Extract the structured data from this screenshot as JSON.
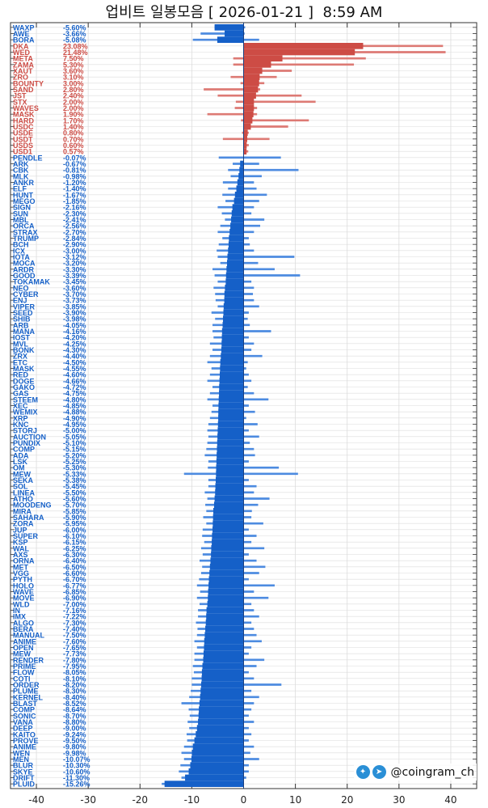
{
  "title": "업비트 일봉모음 [ 2026-01-21 ]  8:59 AM",
  "watermark": "@coingram_ch",
  "watermark_icons": [
    "twitter-icon",
    "telegram-icon"
  ],
  "colors": {
    "down": "#1560c8",
    "down_wick": "#4d8be0",
    "up": "#cd4c45",
    "up_wick": "#dd7a74",
    "grid": "#dcdcdc"
  },
  "chart_data": {
    "type": "bar",
    "orientation": "horizontal candle (change %, low, high)",
    "xlim": [
      -45,
      45
    ],
    "xticks": [
      -40,
      -30,
      -20,
      -10,
      0,
      10,
      20,
      30,
      40
    ],
    "grid": true,
    "rows": [
      [
        "WAXP",
        -5.6,
        -5.6,
        0.3
      ],
      [
        "AWE",
        -3.66,
        -8.3,
        0.2
      ],
      [
        "BORA",
        -5.08,
        -9.8,
        3.0
      ],
      [
        "DKA",
        23.08,
        0,
        38.5
      ],
      [
        "WED",
        21.48,
        0,
        39.0
      ],
      [
        "META",
        7.5,
        -2.0,
        23.6
      ],
      [
        "ZAMA",
        5.3,
        -2.0,
        21.3
      ],
      [
        "XAUT",
        3.6,
        0,
        9.3
      ],
      [
        "ZRO",
        3.1,
        -2.5,
        6.4
      ],
      [
        "BOUNTY",
        3.0,
        -0.6,
        4.0
      ],
      [
        "SAND",
        2.8,
        -7.7,
        3.2
      ],
      [
        "JST",
        2.4,
        -5.0,
        11.2
      ],
      [
        "STX",
        2.0,
        -1.5,
        13.9
      ],
      [
        "WAVES",
        2.0,
        -1.7,
        2.6
      ],
      [
        "MASK",
        1.9,
        -7.0,
        2.6
      ],
      [
        "HARD",
        1.7,
        -0.5,
        12.6
      ],
      [
        "USDC",
        1.4,
        0,
        8.6
      ],
      [
        "USDE",
        0.8,
        -0.3,
        1.0
      ],
      [
        "USDT",
        0.7,
        -4.0,
        5.0
      ],
      [
        "USDS",
        0.6,
        0,
        1.0
      ],
      [
        "USD1",
        0.57,
        0,
        0.9
      ],
      [
        "PENDLE",
        -0.07,
        -4.8,
        7.2
      ],
      [
        "ARK",
        -0.67,
        -2.1,
        3.0
      ],
      [
        "CBK",
        -0.81,
        -3.0,
        10.6
      ],
      [
        "MLK",
        -0.98,
        -2.5,
        3.5
      ],
      [
        "ANKR",
        -1.2,
        -4.0,
        2.0
      ],
      [
        "ELF",
        -1.4,
        -3.0,
        2.5
      ],
      [
        "HUNT",
        -1.67,
        -4.1,
        4.5
      ],
      [
        "MEGO",
        -1.85,
        -3.5,
        3.0
      ],
      [
        "SIGN",
        -2.16,
        -5.0,
        2.0
      ],
      [
        "SUN",
        -2.3,
        -4.2,
        1.5
      ],
      [
        "MBL",
        -2.41,
        -3.6,
        4.0
      ],
      [
        "ORCA",
        -2.56,
        -4.5,
        3.2
      ],
      [
        "STRAX",
        -2.7,
        -5.0,
        2.0
      ],
      [
        "TRUMP",
        -2.84,
        -4.1,
        1.0
      ],
      [
        "BCH",
        -2.9,
        -4.8,
        1.2
      ],
      [
        "ICX",
        -3.0,
        -5.2,
        2.0
      ],
      [
        "IOTA",
        -3.12,
        -5.0,
        9.8
      ],
      [
        "MOCA",
        -3.2,
        -4.5,
        2.8
      ],
      [
        "ARDR",
        -3.3,
        -6.0,
        6.0
      ],
      [
        "GOOD",
        -3.39,
        -5.6,
        10.9
      ],
      [
        "TOKAMAK",
        -3.45,
        -5.0,
        1.5
      ],
      [
        "NEO",
        -3.6,
        -5.8,
        2.0
      ],
      [
        "CYBER",
        -3.7,
        -5.5,
        1.8
      ],
      [
        "ENJ",
        -3.73,
        -5.4,
        2.0
      ],
      [
        "VIPER",
        -3.85,
        -5.0,
        3.0
      ],
      [
        "SEED",
        -3.9,
        -6.2,
        1.0
      ],
      [
        "SHIB",
        -3.98,
        -5.5,
        0.8
      ],
      [
        "ARB",
        -4.05,
        -6.0,
        1.2
      ],
      [
        "MANA",
        -4.16,
        -6.0,
        5.3
      ],
      [
        "IOST",
        -4.2,
        -5.8,
        1.0
      ],
      [
        "MVL",
        -4.25,
        -6.5,
        2.0
      ],
      [
        "BONK",
        -4.3,
        -6.0,
        1.5
      ],
      [
        "ZRX",
        -4.4,
        -6.5,
        3.6
      ],
      [
        "ETC",
        -4.5,
        -7.0,
        0.8
      ],
      [
        "MASK",
        -4.55,
        -6.2,
        0.5
      ],
      [
        "RED",
        -4.6,
        -6.5,
        1.0
      ],
      [
        "DOGE",
        -4.66,
        -7.0,
        1.5
      ],
      [
        "GAKO",
        -4.72,
        -6.0,
        0.8
      ],
      [
        "GAS",
        -4.75,
        -6.5,
        2.0
      ],
      [
        "STEEM",
        -4.8,
        -7.0,
        4.8
      ],
      [
        "XEC",
        -4.85,
        -6.0,
        1.0
      ],
      [
        "WEMIX",
        -4.88,
        -6.2,
        2.2
      ],
      [
        "XRP",
        -4.9,
        -6.5,
        0.5
      ],
      [
        "KNC",
        -4.95,
        -6.8,
        2.7
      ],
      [
        "STORJ",
        -5.0,
        -7.0,
        1.0
      ],
      [
        "AUCTION",
        -5.05,
        -6.8,
        3.0
      ],
      [
        "PUNDIX",
        -5.1,
        -7.0,
        1.2
      ],
      [
        "COMP",
        -5.15,
        -7.2,
        2.0
      ],
      [
        "ADA",
        -5.2,
        -7.5,
        2.2
      ],
      [
        "LSK",
        -5.25,
        -6.8,
        1.0
      ],
      [
        "OM",
        -5.3,
        -6.9,
        6.8
      ],
      [
        "MEW",
        -5.33,
        -11.5,
        10.5
      ],
      [
        "SEKA",
        -5.38,
        -6.8,
        1.0
      ],
      [
        "SOL",
        -5.45,
        -6.8,
        2.5
      ],
      [
        "LINEA",
        -5.5,
        -7.5,
        2.0
      ],
      [
        "ATHO",
        -5.6,
        -7.0,
        5.0
      ],
      [
        "MOODENG",
        -5.7,
        -7.4,
        2.8
      ],
      [
        "MIRA",
        -5.85,
        -7.2,
        1.6
      ],
      [
        "SAHARA",
        -5.9,
        -7.8,
        1.5
      ],
      [
        "ZORA",
        -5.95,
        -7.2,
        3.8
      ],
      [
        "JUP",
        -6.0,
        -7.9,
        1.0
      ],
      [
        "SUPER",
        -6.1,
        -8.0,
        2.5
      ],
      [
        "KSP",
        -6.15,
        -7.6,
        1.5
      ],
      [
        "WAL",
        -6.25,
        -8.2,
        4.0
      ],
      [
        "AXS",
        -6.3,
        -7.9,
        1.0
      ],
      [
        "ORNA",
        -6.4,
        -8.5,
        2.5
      ],
      [
        "MET",
        -6.5,
        -8.0,
        4.2
      ],
      [
        "VGG",
        -6.6,
        -8.2,
        3.0
      ],
      [
        "PYTH",
        -6.7,
        -8.6,
        1.0
      ],
      [
        "HOLO",
        -6.77,
        -9.0,
        6.0
      ],
      [
        "WAVE",
        -6.85,
        -8.4,
        2.0
      ],
      [
        "MOVE",
        -6.9,
        -9.0,
        4.8
      ],
      [
        "WLD",
        -7.0,
        -8.5,
        1.5
      ],
      [
        "IN",
        -7.16,
        -8.8,
        2.0
      ],
      [
        "IMX",
        -7.22,
        -8.8,
        3.0
      ],
      [
        "ALGO",
        -7.3,
        -9.2,
        1.5
      ],
      [
        "BERA",
        -7.4,
        -8.9,
        2.0
      ],
      [
        "MANUAL",
        -7.5,
        -9.0,
        2.5
      ],
      [
        "ANIME",
        -7.6,
        -9.5,
        3.5
      ],
      [
        "OPEN",
        -7.65,
        -9.0,
        1.5
      ],
      [
        "MEW",
        -7.73,
        -9.5,
        1.0
      ],
      [
        "RENDER",
        -7.8,
        -9.5,
        4.0
      ],
      [
        "PRIME",
        -7.95,
        -9.8,
        2.5
      ],
      [
        "FLOW",
        -8.05,
        -9.6,
        1.0
      ],
      [
        "COTI",
        -8.1,
        -10.0,
        2.0
      ],
      [
        "ORDER",
        -8.2,
        -10.0,
        7.3
      ],
      [
        "PLUME",
        -8.3,
        -10.2,
        1.5
      ],
      [
        "KERNEL",
        -8.4,
        -10.5,
        3.0
      ],
      [
        "BLAST",
        -8.52,
        -12.0,
        2.0
      ],
      [
        "COMP",
        -8.64,
        -10.6,
        1.5
      ],
      [
        "SONIC",
        -8.7,
        -10.4,
        1.0
      ],
      [
        "VANA",
        -8.8,
        -10.8,
        2.0
      ],
      [
        "DEEP",
        -9.0,
        -10.5,
        1.0
      ],
      [
        "KAITO",
        -9.24,
        -11.0,
        1.5
      ],
      [
        "PROVE",
        -9.5,
        -10.9,
        1.0
      ],
      [
        "ANIME",
        -9.8,
        -11.5,
        2.0
      ],
      [
        "WEN",
        -9.98,
        -12.0,
        1.3
      ],
      [
        "MEN",
        -10.07,
        -11.5,
        3.0
      ],
      [
        "BLUR",
        -10.3,
        -12.2,
        1.0
      ],
      [
        "SKYE",
        -10.6,
        -12.5,
        1.0
      ],
      [
        "DRIFT",
        -11.3,
        -12.0,
        0.5
      ],
      [
        "PLUID",
        -15.26,
        -15.8,
        0
      ]
    ]
  }
}
